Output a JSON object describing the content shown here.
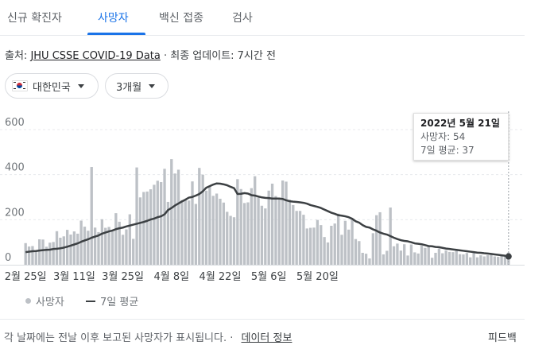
{
  "tabs": [
    "신규 확진자",
    "사망자",
    "백신 접종",
    "검사"
  ],
  "active_tab": 1,
  "source": {
    "prefix": "출처: ",
    "link": "JHU CSSE COVID-19 Data",
    "suffix": " · 최종 업데이트: 7시간 전"
  },
  "filters": {
    "country": "대한민국",
    "period": "3개월"
  },
  "tooltip": {
    "date": "2022년 5월 21일",
    "deaths": "사망자: 54",
    "avg": "7일 평균: 37"
  },
  "legend": {
    "bars": "사망자",
    "line": "7일 평균"
  },
  "footer": {
    "note": "각 날짜에는 전날 이후 보고된 사망자가 표시됩니다. ·",
    "link": "데이터 정보",
    "feedback": "피드백"
  },
  "colors": {
    "bar": "#bdc1c6",
    "line": "#3c4043",
    "accent": "#1a73e8",
    "grid": "#e8eaed"
  },
  "chart_data": {
    "type": "bar",
    "title": "",
    "x_ticks": [
      "2월 25일",
      "3월 11일",
      "3월 25일",
      "4월 8일",
      "4월 22일",
      "5월 6일",
      "5월 20일"
    ],
    "y_ticks": [
      "0",
      "200",
      "400",
      "600"
    ],
    "ylim": [
      0,
      600
    ],
    "grid": true,
    "series": [
      {
        "name": "사망자",
        "type": "bar",
        "values": [
          96,
          81,
          83,
          58,
          113,
          112,
          80,
          98,
          101,
          149,
          120,
          126,
          155,
          134,
          148,
          138,
          196,
          169,
          151,
          434,
          165,
          145,
          202,
          164,
          168,
          148,
          229,
          191,
          133,
          157,
          224,
          115,
          432,
          299,
          323,
          325,
          335,
          355,
          373,
          367,
          426,
          279,
          469,
          405,
          422,
          287,
          289,
          285,
          370,
          270,
          430,
          400,
          329,
          346,
          306,
          316,
          293,
          276,
          235,
          217,
          211,
          380,
          336,
          274,
          277,
          340,
          393,
          299,
          262,
          250,
          329,
          360,
          305,
          295,
          374,
          369,
          289,
          265,
          239,
          239,
          222,
          161,
          164,
          165,
          199,
          176,
          123,
          99,
          173,
          183,
          227,
          133,
          195,
          156,
          203,
          114,
          105,
          53,
          49,
          28,
          140,
          220,
          233,
          46,
          62,
          254,
          82,
          94,
          63,
          91,
          41,
          90,
          55,
          50,
          85,
          75,
          79,
          31,
          53,
          72,
          51,
          64,
          57,
          56,
          68,
          47,
          46,
          52,
          33,
          52,
          33,
          42,
          37,
          43,
          48,
          37,
          35,
          45,
          40,
          54
        ]
      },
      {
        "name": "7일 평균",
        "type": "line",
        "values": [
          56,
          58,
          60,
          61,
          63,
          65,
          66,
          67,
          70,
          71,
          73,
          76,
          80,
          85,
          90,
          95,
          102,
          108,
          113,
          120,
          125,
          130,
          138,
          143,
          148,
          152,
          158,
          162,
          165,
          170,
          174,
          178,
          182,
          186,
          190,
          195,
          201,
          205,
          211,
          215,
          224,
          243,
          252,
          263,
          272,
          281,
          289,
          298,
          301,
          307,
          314,
          326,
          342,
          349,
          356,
          361,
          360,
          357,
          353,
          346,
          340,
          314,
          315,
          318,
          316,
          309,
          307,
          303,
          299,
          297,
          296,
          294,
          294,
          294,
          292,
          286,
          282,
          280,
          279,
          277,
          275,
          271,
          265,
          261,
          257,
          252,
          245,
          238,
          231,
          226,
          220,
          218,
          215,
          211,
          204,
          193,
          187,
          176,
          168,
          165,
          157,
          151,
          143,
          138,
          134,
          127,
          120,
          114,
          109,
          106,
          104,
          100,
          95,
          93,
          91,
          87,
          83,
          82,
          79,
          78,
          75,
          72,
          70,
          68,
          66,
          64,
          62,
          60,
          58,
          56,
          54,
          53,
          51,
          50,
          48,
          46,
          44,
          42,
          40,
          37
        ]
      }
    ]
  }
}
